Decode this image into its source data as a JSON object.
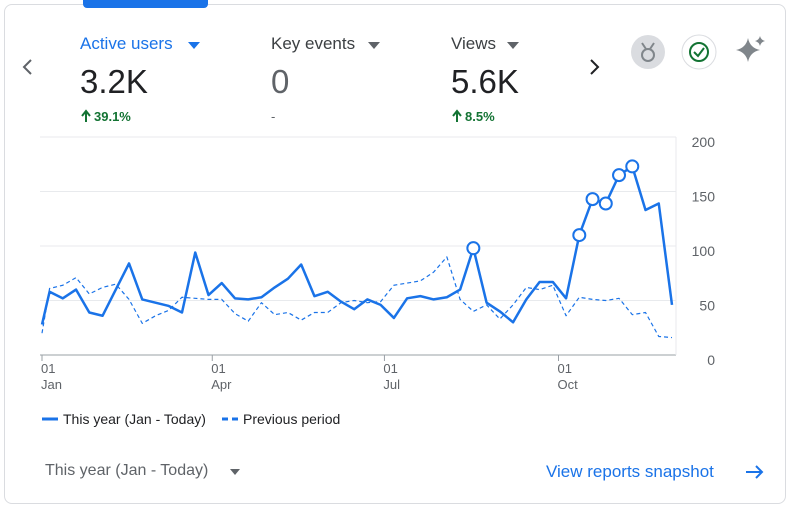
{
  "metrics": [
    {
      "label": "Active users",
      "value": "3.2K",
      "change": "39.1%"
    },
    {
      "label": "Key events",
      "value": "0",
      "change": "-"
    },
    {
      "label": "Views",
      "value": "5.6K",
      "change": "8.5%"
    }
  ],
  "chart_data": {
    "type": "line",
    "x": [
      0,
      4,
      11,
      18,
      25,
      32,
      39,
      46,
      53,
      60,
      67,
      74,
      81,
      88,
      95,
      102,
      109,
      116,
      123,
      130,
      137,
      144,
      151,
      158,
      165,
      172,
      179,
      186,
      193,
      200,
      207,
      214,
      221,
      228,
      235,
      242,
      249,
      256,
      263,
      270,
      277,
      284,
      291,
      298,
      305,
      312,
      319,
      326,
      333
    ],
    "xlim": [
      0,
      333
    ],
    "xticks": [
      {
        "value": 0,
        "label": "01 Jan"
      },
      {
        "value": 90,
        "label": "01 Apr"
      },
      {
        "value": 181,
        "label": "01 Jul"
      },
      {
        "value": 273,
        "label": "01 Oct"
      }
    ],
    "ylim": [
      0,
      200
    ],
    "yticks": [
      0,
      50,
      100,
      150,
      200
    ],
    "grid": true,
    "series": [
      {
        "name": "This year (Jan - Today)",
        "color": "#1a73e8",
        "style": "solid",
        "values": [
          28,
          58,
          52,
          60,
          39,
          36,
          60,
          84,
          51,
          48,
          45,
          39,
          94,
          55,
          66,
          52,
          51,
          53,
          62,
          70,
          83,
          54,
          58,
          49,
          42,
          51,
          46,
          34,
          52,
          54,
          51,
          53,
          60,
          98,
          48,
          40,
          30,
          51,
          67,
          67,
          52,
          110,
          143,
          139,
          165,
          173,
          133,
          139,
          46
        ],
        "marker_indices": [
          33,
          41,
          42,
          43,
          44,
          45
        ]
      },
      {
        "name": "Previous period",
        "color": "#1a73e8",
        "style": "dashed",
        "values": [
          20,
          61,
          64,
          71,
          56,
          62,
          65,
          51,
          29,
          36,
          41,
          53,
          52,
          51,
          51,
          38,
          31,
          48,
          37,
          39,
          32,
          39,
          39,
          48,
          50,
          48,
          49,
          64,
          66,
          68,
          76,
          90,
          51,
          40,
          46,
          33,
          46,
          62,
          60,
          64,
          36,
          53,
          51,
          50,
          52,
          37,
          39,
          17,
          16
        ]
      }
    ]
  },
  "footer": {
    "date_range": "This year (Jan - Today)",
    "link": "View reports snapshot"
  }
}
